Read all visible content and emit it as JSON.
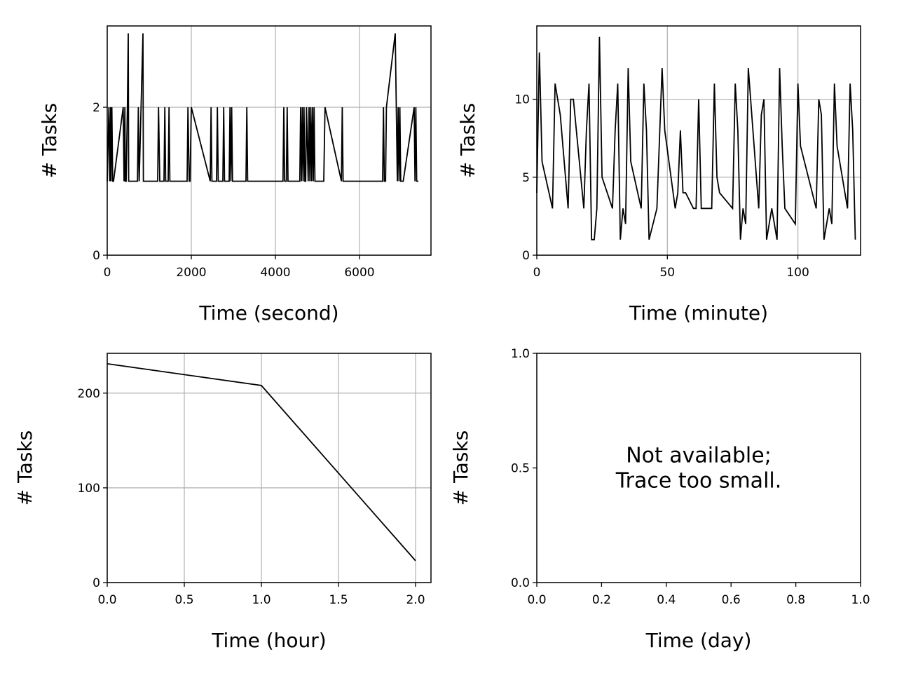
{
  "chart_data": [
    {
      "type": "line",
      "title": "",
      "xlabel": "Time (second)",
      "ylabel": "# Tasks",
      "xlim": [
        0,
        7700
      ],
      "ylim": [
        0,
        3.1
      ],
      "xticks": [
        0,
        2000,
        4000,
        6000
      ],
      "yticks": [
        0,
        2
      ],
      "xtick_labels": [
        "0",
        "2000",
        "4000",
        "6000"
      ],
      "ytick_labels": [
        "0",
        "2"
      ],
      "grid": true,
      "color": "#000000",
      "annotation": "",
      "series": [
        {
          "x": [
            0,
            40,
            60,
            80,
            90,
            110,
            130,
            150,
            380,
            400,
            420,
            430,
            450,
            480,
            500,
            510,
            720,
            740,
            760,
            850,
            860,
            870,
            1200,
            1220,
            1250,
            1280,
            1350,
            1370,
            1390,
            1450,
            1470,
            1490,
            1900,
            1920,
            1950,
            1970,
            2000,
            2450,
            2470,
            2490,
            2600,
            2620,
            2640,
            2750,
            2770,
            2790,
            2900,
            2920,
            2940,
            2960,
            2980,
            3300,
            3320,
            3340,
            4180,
            4200,
            4220,
            4260,
            4280,
            4300,
            4580,
            4600,
            4620,
            4640,
            4660,
            4680,
            4700,
            4720,
            4740,
            4780,
            4800,
            4820,
            4840,
            4860,
            4880,
            4900,
            4920,
            4940,
            5150,
            5180,
            5570,
            5590,
            5610,
            6550,
            6570,
            6590,
            6620,
            6640,
            6850,
            6900,
            6920,
            6940,
            6960,
            6980,
            7000,
            7020,
            7040,
            7300,
            7320,
            7340,
            7360,
            7380,
            7400
          ],
          "y": [
            1,
            2,
            1,
            2,
            1,
            2,
            1,
            1,
            2,
            1,
            2,
            1,
            1,
            2,
            3,
            1,
            1,
            2,
            1,
            3,
            1,
            1,
            1,
            2,
            1,
            1,
            1,
            2,
            1,
            1,
            2,
            1,
            1,
            2,
            1,
            1,
            2,
            1,
            2,
            1,
            1,
            2,
            1,
            1,
            2,
            1,
            1,
            2,
            1,
            2,
            1,
            1,
            2,
            1,
            1,
            2,
            1,
            1,
            2,
            1,
            1,
            2,
            1,
            2,
            1,
            2,
            1,
            1,
            2,
            1,
            2,
            1,
            2,
            1,
            2,
            1,
            2,
            1,
            1,
            2,
            1,
            2,
            1,
            1,
            2,
            1,
            1,
            2,
            3,
            1,
            2,
            1,
            2,
            1,
            1,
            1,
            1,
            2,
            1,
            2,
            1,
            1,
            1
          ]
        }
      ]
    },
    {
      "type": "line",
      "title": "",
      "xlabel": "Time (minute)",
      "ylabel": "# Tasks",
      "xlim": [
        0,
        124
      ],
      "ylim": [
        0,
        14.7
      ],
      "xticks": [
        0,
        50,
        100
      ],
      "yticks": [
        0,
        5,
        10
      ],
      "xtick_labels": [
        "0",
        "50",
        "100"
      ],
      "ytick_labels": [
        "0",
        "5",
        "10"
      ],
      "grid": true,
      "color": "#000000",
      "annotation": "",
      "series": [
        {
          "x": [
            0,
            1,
            2,
            6,
            7,
            9,
            12,
            13,
            14,
            18,
            19,
            20,
            21,
            22,
            23,
            24,
            25,
            29,
            30,
            31,
            32,
            33,
            34,
            35,
            36,
            40,
            41,
            42,
            43,
            46,
            48,
            49,
            53,
            54,
            55,
            56,
            57,
            60,
            61,
            62,
            63,
            64,
            66,
            67,
            68,
            69,
            70,
            75,
            76,
            77,
            78,
            79,
            80,
            81,
            85,
            86,
            87,
            88,
            90,
            92,
            93,
            94,
            95,
            99,
            100,
            101,
            107,
            108,
            109,
            110,
            112,
            113,
            114,
            115,
            119,
            120,
            121,
            122
          ],
          "y": [
            4,
            13,
            6,
            3,
            11,
            9,
            3,
            10,
            10,
            3,
            8,
            11,
            1,
            1,
            3,
            14,
            5,
            3,
            8,
            11,
            1,
            3,
            2,
            12,
            6,
            3,
            11,
            8,
            1,
            3,
            12,
            8,
            3,
            4,
            8,
            4,
            4,
            3,
            3,
            10,
            3,
            3,
            3,
            3,
            11,
            5,
            4,
            3,
            11,
            8,
            1,
            3,
            2,
            12,
            3,
            9,
            10,
            1,
            3,
            1,
            12,
            7,
            3,
            2,
            11,
            7,
            3,
            10,
            9,
            1,
            3,
            2,
            11,
            7,
            3,
            11,
            8,
            1
          ]
        }
      ]
    },
    {
      "type": "line",
      "title": "",
      "xlabel": "Time (hour)",
      "ylabel": "# Tasks",
      "xlim": [
        0,
        2.1
      ],
      "ylim": [
        0,
        242
      ],
      "xticks": [
        0,
        0.5,
        1,
        1.5,
        2
      ],
      "yticks": [
        0,
        100,
        200
      ],
      "xtick_labels": [
        "0.0",
        "0.5",
        "1.0",
        "1.5",
        "2.0"
      ],
      "ytick_labels": [
        "0",
        "100",
        "200"
      ],
      "grid": true,
      "color": "#000000",
      "annotation": "",
      "series": [
        {
          "x": [
            0,
            1,
            2
          ],
          "y": [
            231,
            208,
            23
          ]
        }
      ]
    },
    {
      "type": "line",
      "title": "",
      "xlabel": "Time (day)",
      "ylabel": "# Tasks",
      "xlim": [
        0,
        1
      ],
      "ylim": [
        0,
        1
      ],
      "xticks": [
        0,
        0.2,
        0.4,
        0.6,
        0.8,
        1
      ],
      "yticks": [
        0,
        0.5,
        1
      ],
      "xtick_labels": [
        "0.0",
        "0.2",
        "0.4",
        "0.6",
        "0.8",
        "1.0"
      ],
      "ytick_labels": [
        "0.0",
        "0.5",
        "1.0"
      ],
      "grid": false,
      "color": "#000000",
      "annotation": "Not available;\nTrace too small.",
      "series": []
    }
  ]
}
